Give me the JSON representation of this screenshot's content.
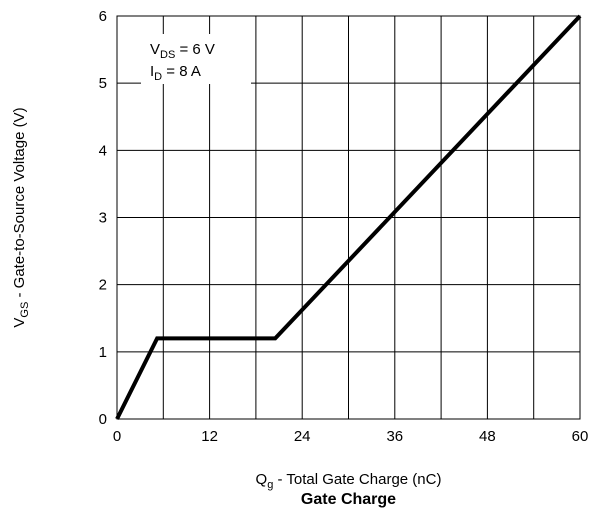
{
  "chart_data": {
    "type": "line",
    "title": "Gate Charge",
    "xlabel": {
      "main": "Q",
      "sub": "g",
      "rest": " - Total Gate Charge (nC)"
    },
    "ylabel": {
      "main": "V",
      "sub": "GS",
      "rest": " - Gate-to-Source Voltage (V)"
    },
    "xlim": [
      0,
      60
    ],
    "ylim": [
      0,
      6
    ],
    "xticks": [
      0,
      12,
      24,
      36,
      48,
      60
    ],
    "yticks": [
      0,
      1,
      2,
      3,
      4,
      5,
      6
    ],
    "xgrid": [
      0,
      6,
      12,
      18,
      24,
      30,
      36,
      42,
      48,
      54,
      60
    ],
    "ygrid": [
      0,
      1,
      2,
      3,
      4,
      5,
      6
    ],
    "grid": true,
    "annotations": [
      {
        "main": "V",
        "sub": "DS",
        "rest": " = 6 V"
      },
      {
        "main": "I",
        "sub": "D",
        "rest": " = 8 A"
      }
    ],
    "series": [
      {
        "color": "#000000",
        "points": [
          [
            0,
            0
          ],
          [
            5.2,
            1.2
          ],
          [
            20.5,
            1.2
          ],
          [
            60,
            6
          ]
        ]
      }
    ]
  }
}
